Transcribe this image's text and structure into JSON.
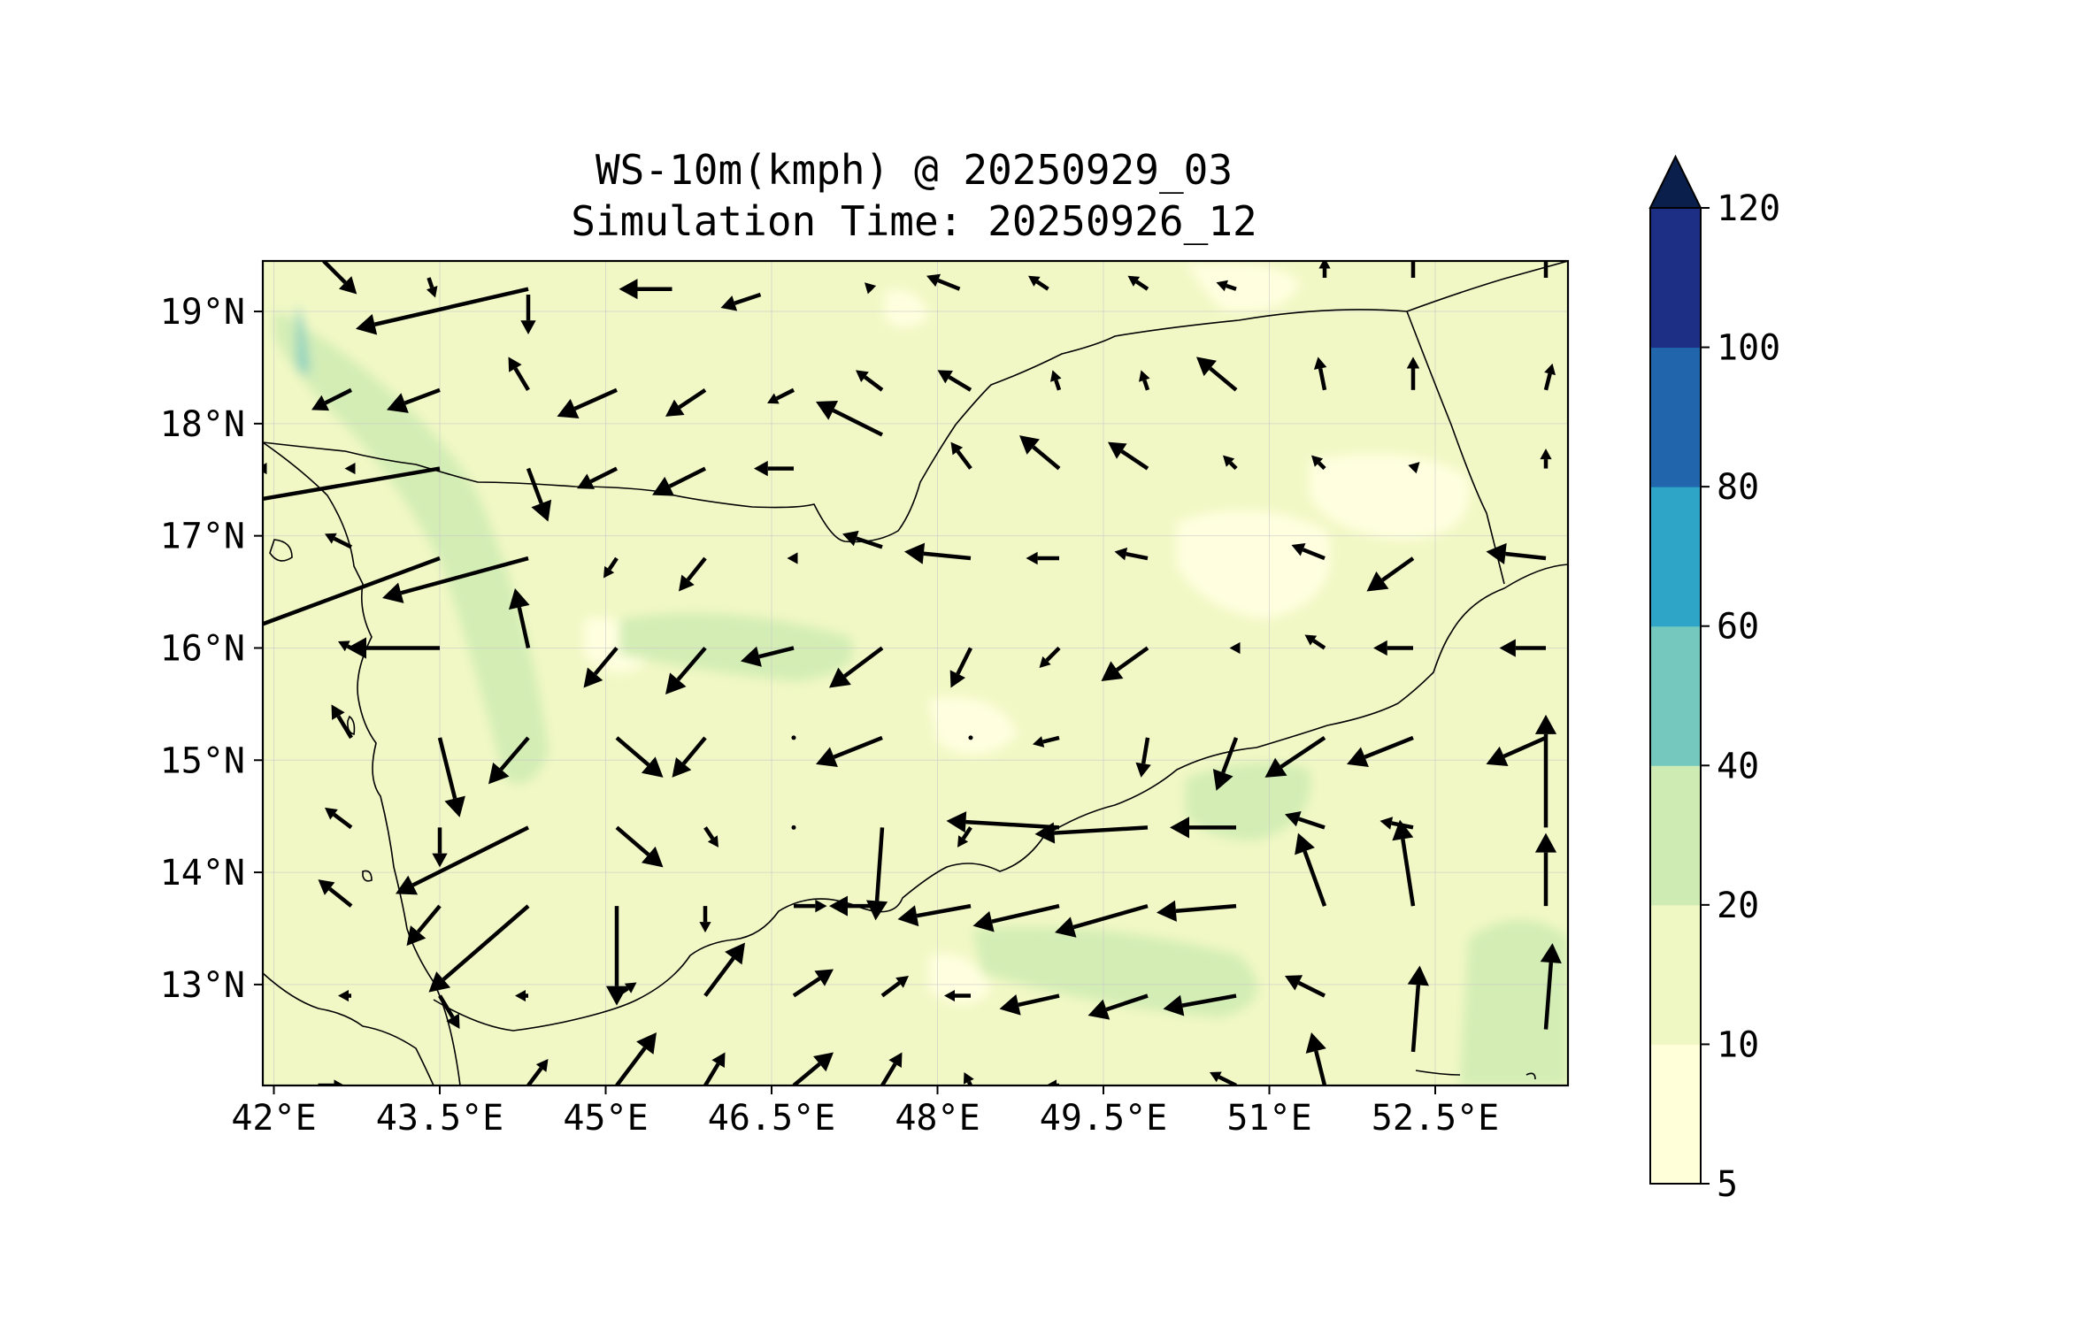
{
  "title_line1": "WS-10m(kmph) @ 20250929_03",
  "title_line2": "Simulation Time: 20250926_12",
  "lon_ticks": [
    {
      "label": "42°E",
      "value": 42.0
    },
    {
      "label": "43.5°E",
      "value": 43.5
    },
    {
      "label": "45°E",
      "value": 45.0
    },
    {
      "label": "46.5°E",
      "value": 46.5
    },
    {
      "label": "48°E",
      "value": 48.0
    },
    {
      "label": "49.5°E",
      "value": 49.5
    },
    {
      "label": "51°E",
      "value": 51.0
    },
    {
      "label": "52.5°E",
      "value": 52.5
    }
  ],
  "lat_ticks": [
    {
      "label": "19°N",
      "value": 19
    },
    {
      "label": "18°N",
      "value": 18
    },
    {
      "label": "17°N",
      "value": 17
    },
    {
      "label": "16°N",
      "value": 16
    },
    {
      "label": "15°N",
      "value": 15
    },
    {
      "label": "14°N",
      "value": 14
    },
    {
      "label": "13°N",
      "value": 13
    }
  ],
  "extent": {
    "lon_min": 41.9,
    "lon_max": 53.7,
    "lat_min": 12.1,
    "lat_max": 19.45
  },
  "colorbar": {
    "extend": "max",
    "extend_color": "#0b1f4d",
    "levels": [
      {
        "label": "5",
        "value": 5,
        "color": "#ffffd9"
      },
      {
        "label": "10",
        "value": 10,
        "color": "#eff8c2"
      },
      {
        "label": "20",
        "value": 20,
        "color": "#ceebb4"
      },
      {
        "label": "40",
        "value": 40,
        "color": "#74c8be"
      },
      {
        "label": "60",
        "value": 60,
        "color": "#2ea5c7"
      },
      {
        "label": "80",
        "value": 80,
        "color": "#2166ac"
      },
      {
        "label": "100",
        "value": 100,
        "color": "#1d2f85"
      },
      {
        "label": "120",
        "value": 120
      }
    ]
  },
  "wind_vectors": [
    {
      "lon": 42.45,
      "lat": 19.45,
      "u": 0.5,
      "v": -0.5
    },
    {
      "lon": 43.4,
      "lat": 19.3,
      "u": 0.1,
      "v": -0.3
    },
    {
      "lon": 44.3,
      "lat": 19.2,
      "u": -2.6,
      "v": -0.6
    },
    {
      "lon": 44.3,
      "lat": 19.15,
      "u": 0.0,
      "v": -0.6
    },
    {
      "lon": 45.6,
      "lat": 19.2,
      "u": -0.8,
      "v": 0.0
    },
    {
      "lon": 46.4,
      "lat": 19.15,
      "u": -0.6,
      "v": -0.2
    },
    {
      "lon": 47.4,
      "lat": 19.2,
      "u": -0.1,
      "v": 0.1
    },
    {
      "lon": 48.2,
      "lat": 19.2,
      "u": -0.5,
      "v": 0.2
    },
    {
      "lon": 49.0,
      "lat": 19.2,
      "u": -0.3,
      "v": 0.2
    },
    {
      "lon": 49.9,
      "lat": 19.2,
      "u": -0.3,
      "v": 0.2
    },
    {
      "lon": 50.7,
      "lat": 19.2,
      "u": -0.3,
      "v": 0.1
    },
    {
      "lon": 51.5,
      "lat": 19.3,
      "u": 0.0,
      "v": 0.3
    },
    {
      "lon": 52.3,
      "lat": 19.3,
      "u": 0.0,
      "v": 0.4
    },
    {
      "lon": 53.5,
      "lat": 19.3,
      "u": 0.0,
      "v": 0.4
    },
    {
      "lon": 42.7,
      "lat": 18.3,
      "u": -0.6,
      "v": -0.3
    },
    {
      "lon": 43.5,
      "lat": 18.3,
      "u": -0.8,
      "v": -0.3
    },
    {
      "lon": 44.3,
      "lat": 18.3,
      "u": -0.3,
      "v": 0.5
    },
    {
      "lon": 45.1,
      "lat": 18.3,
      "u": -0.9,
      "v": -0.4
    },
    {
      "lon": 45.9,
      "lat": 18.3,
      "u": -0.6,
      "v": -0.4
    },
    {
      "lon": 46.7,
      "lat": 18.3,
      "u": -0.4,
      "v": -0.2
    },
    {
      "lon": 47.5,
      "lat": 18.3,
      "u": -0.4,
      "v": 0.3
    },
    {
      "lon": 48.3,
      "lat": 18.3,
      "u": -0.5,
      "v": 0.3
    },
    {
      "lon": 49.1,
      "lat": 18.3,
      "u": -0.1,
      "v": 0.3
    },
    {
      "lon": 49.9,
      "lat": 18.3,
      "u": -0.1,
      "v": 0.3
    },
    {
      "lon": 50.7,
      "lat": 18.3,
      "u": -0.6,
      "v": 0.5
    },
    {
      "lon": 51.5,
      "lat": 18.3,
      "u": -0.1,
      "v": 0.5
    },
    {
      "lon": 52.3,
      "lat": 18.3,
      "u": 0.0,
      "v": 0.5
    },
    {
      "lon": 53.5,
      "lat": 18.3,
      "u": 0.1,
      "v": 0.4
    },
    {
      "lon": 41.9,
      "lat": 17.6,
      "u": -0.1,
      "v": 0.0
    },
    {
      "lon": 43.5,
      "lat": 17.6,
      "u": -3.5,
      "v": -0.6
    },
    {
      "lon": 42.7,
      "lat": 17.6,
      "u": -0.1,
      "v": 0.0
    },
    {
      "lon": 44.3,
      "lat": 17.6,
      "u": 0.3,
      "v": -0.8
    },
    {
      "lon": 45.1,
      "lat": 17.6,
      "u": -0.6,
      "v": -0.3
    },
    {
      "lon": 45.9,
      "lat": 17.6,
      "u": -0.8,
      "v": -0.4
    },
    {
      "lon": 46.7,
      "lat": 17.6,
      "u": -0.6,
      "v": 0.0
    },
    {
      "lon": 47.5,
      "lat": 17.9,
      "u": -1.0,
      "v": 0.5
    },
    {
      "lon": 48.3,
      "lat": 17.6,
      "u": -0.3,
      "v": 0.4
    },
    {
      "lon": 49.1,
      "lat": 17.6,
      "u": -0.6,
      "v": 0.5
    },
    {
      "lon": 49.9,
      "lat": 17.6,
      "u": -0.6,
      "v": 0.4
    },
    {
      "lon": 50.7,
      "lat": 17.6,
      "u": -0.2,
      "v": 0.2
    },
    {
      "lon": 51.5,
      "lat": 17.6,
      "u": -0.2,
      "v": 0.2
    },
    {
      "lon": 52.3,
      "lat": 17.6,
      "u": 0.1,
      "v": 0.1
    },
    {
      "lon": 53.5,
      "lat": 17.6,
      "u": 0.0,
      "v": 0.3
    },
    {
      "lon": 42.7,
      "lat": 16.9,
      "u": -0.4,
      "v": 0.2
    },
    {
      "lon": 43.5,
      "lat": 16.8,
      "u": -3.5,
      "v": -1.3
    },
    {
      "lon": 44.3,
      "lat": 16.8,
      "u": -2.2,
      "v": -0.6
    },
    {
      "lon": 45.1,
      "lat": 16.8,
      "u": -0.2,
      "v": -0.3
    },
    {
      "lon": 45.9,
      "lat": 16.8,
      "u": -0.4,
      "v": -0.5
    },
    {
      "lon": 46.7,
      "lat": 16.8,
      "u": -0.1,
      "v": 0.0
    },
    {
      "lon": 47.5,
      "lat": 16.9,
      "u": -0.6,
      "v": 0.2
    },
    {
      "lon": 48.3,
      "lat": 16.8,
      "u": -1.0,
      "v": 0.1
    },
    {
      "lon": 49.1,
      "lat": 16.8,
      "u": -0.5,
      "v": 0.0
    },
    {
      "lon": 49.9,
      "lat": 16.8,
      "u": -0.5,
      "v": 0.1
    },
    {
      "lon": 51.5,
      "lat": 16.8,
      "u": -0.5,
      "v": 0.2
    },
    {
      "lon": 52.3,
      "lat": 16.8,
      "u": -0.7,
      "v": -0.5
    },
    {
      "lon": 53.5,
      "lat": 16.8,
      "u": -0.9,
      "v": 0.1
    },
    {
      "lon": 42.7,
      "lat": 16.0,
      "u": -0.2,
      "v": 0.1
    },
    {
      "lon": 43.5,
      "lat": 16.0,
      "u": -1.4,
      "v": 0.0
    },
    {
      "lon": 44.3,
      "lat": 16.0,
      "u": -0.2,
      "v": 0.9
    },
    {
      "lon": 45.1,
      "lat": 16.0,
      "u": -0.5,
      "v": -0.6
    },
    {
      "lon": 45.9,
      "lat": 16.0,
      "u": -0.6,
      "v": -0.7
    },
    {
      "lon": 46.7,
      "lat": 16.0,
      "u": -0.8,
      "v": -0.2
    },
    {
      "lon": 47.5,
      "lat": 16.0,
      "u": -0.8,
      "v": -0.6
    },
    {
      "lon": 48.3,
      "lat": 16.0,
      "u": -0.3,
      "v": -0.6
    },
    {
      "lon": 49.1,
      "lat": 16.0,
      "u": -0.3,
      "v": -0.3
    },
    {
      "lon": 49.9,
      "lat": 16.0,
      "u": -0.7,
      "v": -0.5
    },
    {
      "lon": 50.7,
      "lat": 16.0,
      "u": -0.1,
      "v": 0.0
    },
    {
      "lon": 51.5,
      "lat": 16.0,
      "u": -0.3,
      "v": 0.2
    },
    {
      "lon": 52.3,
      "lat": 16.0,
      "u": -0.6,
      "v": 0.0
    },
    {
      "lon": 53.5,
      "lat": 16.0,
      "u": -0.7,
      "v": 0.0
    },
    {
      "lon": 42.7,
      "lat": 15.2,
      "u": -0.3,
      "v": 0.5
    },
    {
      "lon": 43.5,
      "lat": 15.2,
      "u": 0.3,
      "v": -1.2
    },
    {
      "lon": 44.3,
      "lat": 15.2,
      "u": -0.6,
      "v": -0.7
    },
    {
      "lon": 45.1,
      "lat": 15.2,
      "u": 0.7,
      "v": -0.6
    },
    {
      "lon": 45.9,
      "lat": 15.2,
      "u": -0.5,
      "v": -0.6
    },
    {
      "lon": 46.7,
      "lat": 15.2,
      "u": 0.0,
      "v": 0.0
    },
    {
      "lon": 47.5,
      "lat": 15.2,
      "u": -1.0,
      "v": -0.4
    },
    {
      "lon": 48.3,
      "lat": 15.2,
      "u": 0.0,
      "v": 0.0
    },
    {
      "lon": 49.1,
      "lat": 15.2,
      "u": -0.4,
      "v": -0.1
    },
    {
      "lon": 49.9,
      "lat": 15.2,
      "u": -0.1,
      "v": -0.6
    },
    {
      "lon": 50.7,
      "lat": 15.2,
      "u": -0.3,
      "v": -0.8
    },
    {
      "lon": 51.5,
      "lat": 15.2,
      "u": -0.9,
      "v": -0.6
    },
    {
      "lon": 52.3,
      "lat": 15.2,
      "u": -1.0,
      "v": -0.4
    },
    {
      "lon": 53.5,
      "lat": 15.2,
      "u": -0.9,
      "v": -0.4
    },
    {
      "lon": 42.7,
      "lat": 14.4,
      "u": -0.4,
      "v": 0.3
    },
    {
      "lon": 43.5,
      "lat": 14.4,
      "u": 0.0,
      "v": -0.6
    },
    {
      "lon": 44.3,
      "lat": 14.4,
      "u": -2.0,
      "v": -1.0
    },
    {
      "lon": 45.1,
      "lat": 14.4,
      "u": 0.7,
      "v": -0.6
    },
    {
      "lon": 45.9,
      "lat": 14.4,
      "u": 0.2,
      "v": -0.3
    },
    {
      "lon": 46.7,
      "lat": 14.4,
      "u": 0.0,
      "v": 0.0
    },
    {
      "lon": 47.5,
      "lat": 14.4,
      "u": -0.1,
      "v": -1.4
    },
    {
      "lon": 48.3,
      "lat": 14.4,
      "u": -0.2,
      "v": -0.3
    },
    {
      "lon": 49.1,
      "lat": 14.4,
      "u": -1.7,
      "v": 0.1
    },
    {
      "lon": 49.9,
      "lat": 14.4,
      "u": -1.7,
      "v": -0.1
    },
    {
      "lon": 50.7,
      "lat": 14.4,
      "u": -1.0,
      "v": 0.0
    },
    {
      "lon": 51.5,
      "lat": 14.4,
      "u": -0.6,
      "v": 0.2
    },
    {
      "lon": 52.3,
      "lat": 14.4,
      "u": -0.5,
      "v": 0.1
    },
    {
      "lon": 53.5,
      "lat": 14.4,
      "u": 0.0,
      "v": 1.7
    },
    {
      "lon": 42.7,
      "lat": 13.7,
      "u": -0.5,
      "v": 0.4
    },
    {
      "lon": 43.5,
      "lat": 13.7,
      "u": -0.5,
      "v": -0.6
    },
    {
      "lon": 44.3,
      "lat": 13.7,
      "u": -1.5,
      "v": -1.3
    },
    {
      "lon": 45.1,
      "lat": 13.7,
      "u": 0.0,
      "v": -1.5
    },
    {
      "lon": 45.9,
      "lat": 13.7,
      "u": 0.0,
      "v": -0.4
    },
    {
      "lon": 46.7,
      "lat": 13.7,
      "u": 0.5,
      "v": 0.0
    },
    {
      "lon": 47.5,
      "lat": 13.7,
      "u": -0.8,
      "v": 0.0
    },
    {
      "lon": 48.3,
      "lat": 13.7,
      "u": -1.1,
      "v": -0.2
    },
    {
      "lon": 49.1,
      "lat": 13.7,
      "u": -1.3,
      "v": -0.3
    },
    {
      "lon": 49.9,
      "lat": 13.7,
      "u": -1.4,
      "v": -0.4
    },
    {
      "lon": 50.7,
      "lat": 13.7,
      "u": -1.2,
      "v": -0.1
    },
    {
      "lon": 51.5,
      "lat": 13.7,
      "u": -0.4,
      "v": 1.1
    },
    {
      "lon": 52.3,
      "lat": 13.7,
      "u": -0.2,
      "v": 1.3
    },
    {
      "lon": 53.5,
      "lat": 13.7,
      "u": 0.0,
      "v": 1.1
    },
    {
      "lon": 42.7,
      "lat": 12.9,
      "u": -0.2,
      "v": 0.0
    },
    {
      "lon": 43.5,
      "lat": 12.9,
      "u": 0.3,
      "v": -0.5
    },
    {
      "lon": 44.3,
      "lat": 12.9,
      "u": -0.2,
      "v": 0.0
    },
    {
      "lon": 45.1,
      "lat": 12.9,
      "u": 0.3,
      "v": 0.2
    },
    {
      "lon": 45.9,
      "lat": 12.9,
      "u": 0.6,
      "v": 0.8
    },
    {
      "lon": 46.7,
      "lat": 12.9,
      "u": 0.6,
      "v": 0.4
    },
    {
      "lon": 47.5,
      "lat": 12.9,
      "u": 0.4,
      "v": 0.3
    },
    {
      "lon": 48.3,
      "lat": 12.9,
      "u": -0.4,
      "v": 0.0
    },
    {
      "lon": 49.1,
      "lat": 12.9,
      "u": -0.9,
      "v": -0.2
    },
    {
      "lon": 49.9,
      "lat": 12.9,
      "u": -0.9,
      "v": -0.3
    },
    {
      "lon": 50.7,
      "lat": 12.9,
      "u": -1.1,
      "v": -0.2
    },
    {
      "lon": 51.5,
      "lat": 12.9,
      "u": -0.6,
      "v": 0.3
    },
    {
      "lon": 52.3,
      "lat": 12.4,
      "u": 0.1,
      "v": 1.3
    },
    {
      "lon": 53.5,
      "lat": 12.6,
      "u": 0.1,
      "v": 1.3
    },
    {
      "lon": 42.4,
      "lat": 12.1,
      "u": 0.4,
      "v": 0.0
    },
    {
      "lon": 44.3,
      "lat": 12.1,
      "u": 0.3,
      "v": 0.4
    },
    {
      "lon": 45.1,
      "lat": 12.1,
      "u": 0.6,
      "v": 0.8
    },
    {
      "lon": 45.9,
      "lat": 12.1,
      "u": 0.3,
      "v": 0.5
    },
    {
      "lon": 46.7,
      "lat": 12.1,
      "u": 0.6,
      "v": 0.5
    },
    {
      "lon": 47.5,
      "lat": 12.1,
      "u": 0.3,
      "v": 0.5
    },
    {
      "lon": 48.3,
      "lat": 12.1,
      "u": -0.1,
      "v": 0.2
    },
    {
      "lon": 49.1,
      "lat": 12.1,
      "u": -0.2,
      "v": 0.0
    },
    {
      "lon": 50.7,
      "lat": 12.1,
      "u": -0.4,
      "v": 0.2
    },
    {
      "lon": 51.5,
      "lat": 12.1,
      "u": -0.2,
      "v": 0.8
    }
  ]
}
